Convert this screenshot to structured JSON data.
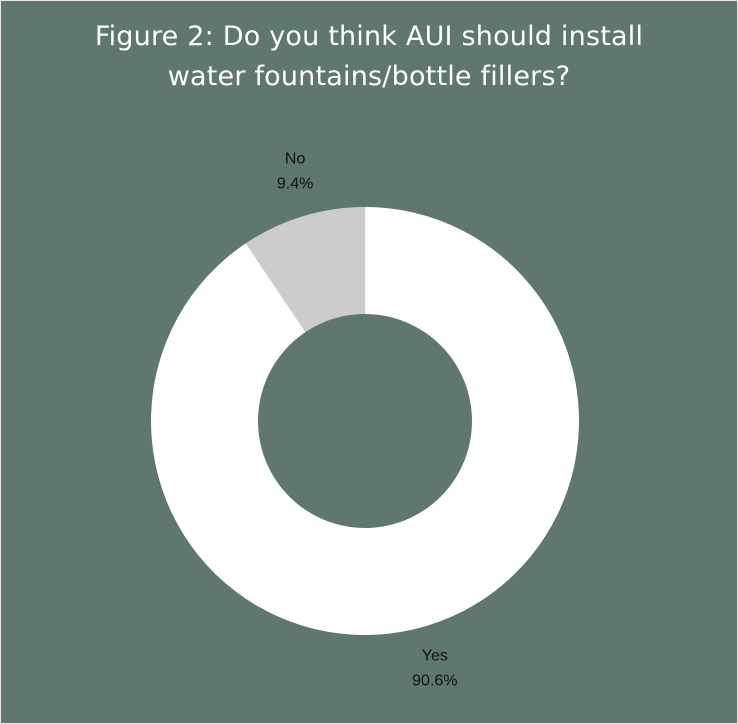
{
  "title": {
    "line1": "Figure 2: Do you think AUI should install",
    "line2": "water fountains/bottle fillers?"
  },
  "chart_data": {
    "type": "pie",
    "variant": "donut",
    "title": "Figure 2: Do you think AUI should install water fountains/bottle fillers?",
    "slices": [
      {
        "label": "No",
        "value": 9.4,
        "display": "9.4%",
        "color": "#cccccc"
      },
      {
        "label": "Yes",
        "value": 90.6,
        "display": "90.6%",
        "color": "#ffffff"
      }
    ],
    "legend": "none",
    "background_color": "#5f7671"
  }
}
